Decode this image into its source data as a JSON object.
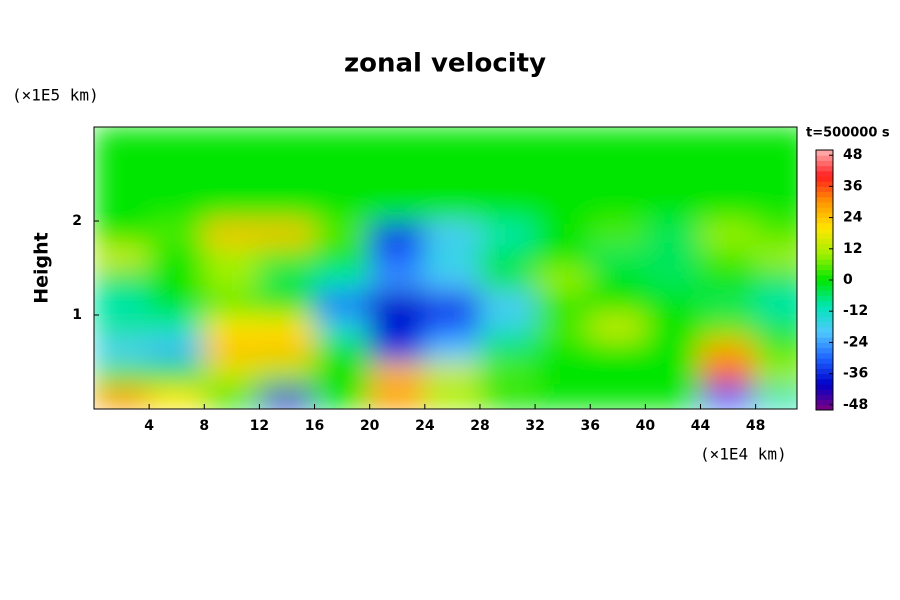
{
  "chart_data": {
    "type": "contour",
    "title": "zonal velocity",
    "y_label": "Height",
    "y_unit": "(×1E5 km)",
    "x_unit": "(×1E4 km)",
    "time_label": "t=500000 s",
    "xlim": [
      0,
      51
    ],
    "ylim": [
      0,
      3
    ],
    "xticks": [
      4,
      8,
      12,
      16,
      20,
      24,
      28,
      32,
      36,
      40,
      44,
      48
    ],
    "yticks": [
      1,
      2
    ],
    "clim": [
      -50,
      50
    ],
    "cticks": [
      -48,
      -36,
      -24,
      -12,
      0,
      12,
      24,
      36,
      48
    ],
    "colormap": [
      "#800080",
      "#0000c8",
      "#1e64ff",
      "#50c8ff",
      "#00e6b4",
      "#00e600",
      "#a0f000",
      "#ffe600",
      "#ff9600",
      "#ff1e1e",
      "#ffb4b4"
    ],
    "x": [
      2,
      6,
      10,
      14,
      18,
      22,
      26,
      30,
      34,
      38,
      42,
      46,
      50
    ],
    "y": [
      0.125,
      0.375,
      0.625,
      0.875,
      1.125,
      1.375,
      1.625,
      1.875,
      2.125,
      2.375,
      2.625,
      2.875
    ],
    "z": [
      [
        30,
        20,
        0,
        -40,
        0,
        30,
        10,
        0,
        0,
        0,
        0,
        -30,
        -10
      ],
      [
        5,
        0,
        15,
        10,
        0,
        25,
        15,
        5,
        0,
        0,
        0,
        35,
        10
      ],
      [
        -20,
        -22,
        25,
        25,
        0,
        -35,
        -20,
        -5,
        0,
        0,
        0,
        28,
        5
      ],
      [
        -8,
        -10,
        20,
        20,
        -15,
        -38,
        -30,
        -15,
        5,
        15,
        0,
        5,
        -5
      ],
      [
        -10,
        0,
        5,
        0,
        -30,
        -40,
        -35,
        -20,
        0,
        0,
        0,
        -5,
        -10
      ],
      [
        -5,
        0,
        10,
        -5,
        -10,
        -25,
        -20,
        -5,
        10,
        0,
        -5,
        0,
        -5
      ],
      [
        15,
        0,
        10,
        5,
        0,
        -30,
        -15,
        -5,
        0,
        -5,
        -5,
        5,
        10
      ],
      [
        0,
        5,
        25,
        25,
        5,
        -35,
        -20,
        -10,
        0,
        5,
        -5,
        10,
        5
      ],
      [
        0,
        0,
        0,
        0,
        0,
        0,
        0,
        0,
        0,
        0,
        0,
        0,
        0
      ],
      [
        0,
        0,
        0,
        0,
        0,
        0,
        0,
        0,
        0,
        0,
        0,
        0,
        0
      ],
      [
        0,
        0,
        0,
        0,
        0,
        0,
        0,
        0,
        0,
        0,
        0,
        0,
        0
      ],
      [
        0,
        0,
        0,
        0,
        0,
        0,
        0,
        0,
        0,
        0,
        0,
        0,
        0
      ]
    ]
  }
}
